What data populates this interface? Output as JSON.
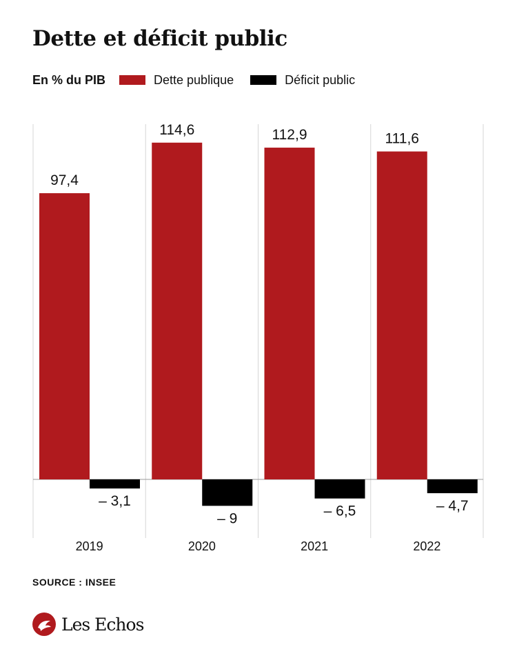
{
  "header": {
    "title": "Dette et déficit public",
    "unit": "En % du PIB"
  },
  "legend": [
    {
      "label": "Dette publique",
      "color": "#b01a1e"
    },
    {
      "label": "Déficit public",
      "color": "#000000"
    }
  ],
  "chart_data": {
    "type": "bar",
    "categories": [
      "2019",
      "2020",
      "2021",
      "2022"
    ],
    "series": [
      {
        "name": "Dette publique",
        "values": [
          97.4,
          114.6,
          112.9,
          111.6
        ],
        "labels": [
          "97,4",
          "114,6",
          "112,9",
          "111,6"
        ],
        "color": "#b01a1e"
      },
      {
        "name": "Déficit public",
        "values": [
          -3.1,
          -9,
          -6.5,
          -4.7
        ],
        "labels": [
          "– 3,1",
          "– 9",
          "– 6,5",
          "– 4,7"
        ],
        "color": "#000000"
      }
    ],
    "ylabel": "En % du PIB",
    "ylim": [
      -15,
      125
    ],
    "grid": "vertical separators"
  },
  "footer": {
    "source": "SOURCE : INSEE",
    "brand": "Les Echos",
    "brand_icon": "les-echos-logo-icon"
  }
}
